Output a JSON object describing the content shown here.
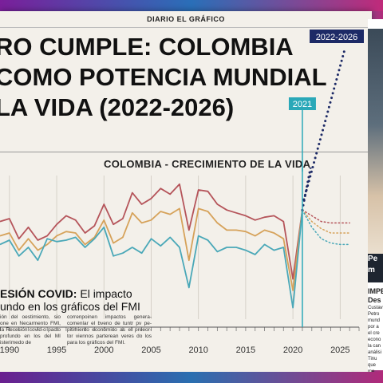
{
  "masthead": "DIARIO EL GRÁFICO",
  "headline": {
    "line1": "RO CUMPLE: COLOMBIA",
    "line2": " COMO POTENCIA MUNDIAL",
    "line3": " LA VIDA (2022-2026)"
  },
  "chart_data": {
    "type": "line",
    "title": "COLOMBIA - CRECIMIENTO DE LA VIDA",
    "x_ticks": [
      1990,
      1995,
      2000,
      2005,
      2010,
      2015,
      2020,
      2025
    ],
    "xlim": [
      1989,
      2027
    ],
    "ylim": [
      0,
      100
    ],
    "series": [
      {
        "color": "#b5545a",
        "x": [
          1989,
          1990,
          1991,
          1992,
          1993,
          1994,
          1995,
          1996,
          1997,
          1998,
          1999,
          2000,
          2001,
          2002,
          2003,
          2004,
          2005,
          2006,
          2007,
          2008,
          2009,
          2010,
          2011,
          2012,
          2013,
          2014,
          2015,
          2016,
          2017,
          2018,
          2019,
          2020,
          2021
        ],
        "y": [
          68,
          70,
          56,
          64,
          55,
          58,
          66,
          72,
          69,
          60,
          65,
          80,
          66,
          70,
          88,
          80,
          84,
          91,
          87,
          94,
          62,
          90,
          89,
          80,
          76,
          74,
          72,
          69,
          71,
          72,
          68,
          28,
          76
        ]
      },
      {
        "color": "#d6a25a",
        "x": [
          1989,
          1990,
          1991,
          1992,
          1993,
          1994,
          1995,
          1996,
          1997,
          1998,
          1999,
          2000,
          2001,
          2002,
          2003,
          2004,
          2005,
          2006,
          2007,
          2008,
          2009,
          2010,
          2011,
          2012,
          2013,
          2014,
          2015,
          2016,
          2017,
          2018,
          2019,
          2020,
          2021
        ],
        "y": [
          58,
          60,
          48,
          56,
          48,
          52,
          58,
          61,
          60,
          52,
          57,
          69,
          53,
          57,
          74,
          67,
          69,
          75,
          73,
          77,
          41,
          77,
          75,
          67,
          62,
          62,
          61,
          58,
          62,
          60,
          56,
          20,
          76
        ]
      },
      {
        "color": "#4aa8b8",
        "x": [
          1989,
          1990,
          1991,
          1992,
          1993,
          1994,
          1995,
          1996,
          1997,
          1998,
          1999,
          2000,
          2001,
          2002,
          2003,
          2004,
          2005,
          2006,
          2007,
          2008,
          2009,
          2010,
          2011,
          2012,
          2013,
          2014,
          2015,
          2016,
          2017,
          2018,
          2019,
          2020,
          2021
        ],
        "y": [
          52,
          55,
          44,
          50,
          41,
          56,
          54,
          55,
          57,
          50,
          56,
          64,
          44,
          46,
          50,
          46,
          56,
          51,
          57,
          50,
          22,
          58,
          55,
          47,
          50,
          50,
          48,
          45,
          52,
          48,
          50,
          8,
          76
        ]
      }
    ],
    "projections": [
      {
        "color": "#b5545a",
        "x": [
          2021,
          2022,
          2023,
          2024,
          2025,
          2026
        ],
        "y": [
          76,
          72,
          68,
          67,
          67,
          67
        ]
      },
      {
        "color": "#d6a25a",
        "x": [
          2021,
          2022,
          2023,
          2024,
          2025,
          2026
        ],
        "y": [
          76,
          68,
          63,
          60,
          60,
          60
        ]
      },
      {
        "color": "#4aa8b8",
        "x": [
          2021,
          2022,
          2023,
          2024,
          2025,
          2026
        ],
        "y": [
          76,
          64,
          56,
          53,
          52,
          52
        ]
      },
      {
        "color": "#1d2a66",
        "x": [
          2021,
          2022,
          2023,
          2024,
          2025,
          2026.5
        ],
        "y": [
          76,
          110,
          150,
          195,
          240,
          310
        ]
      }
    ],
    "marker_2021_label": "2021",
    "marker_2026_label": "2022-2026"
  },
  "article": {
    "title_bold": "ESIÓN COVID:",
    "title_rest": " El impacto",
    "title_line2": "undo en los gráficos del FMI",
    "col1": "ión del oestimiento, sio one en Necarmento FMI, la Recesión covid-o pacto profundo en los del MI isterimedo de",
    "col2": "correnpoinen impactos genera-comenlar el bveno de tuntr pv pe-pitimiento económico as el preeor-tor viennos parterean veres do los para los gráficos del FMI."
  },
  "side": {
    "caption_line1": "Pe",
    "caption_line2": "m",
    "head_line1": "IMPE",
    "head_line2": "Des",
    "byline": "Custav",
    "body": "Petro mund por a el cre econo la can análisi Tinu que me perape"
  }
}
